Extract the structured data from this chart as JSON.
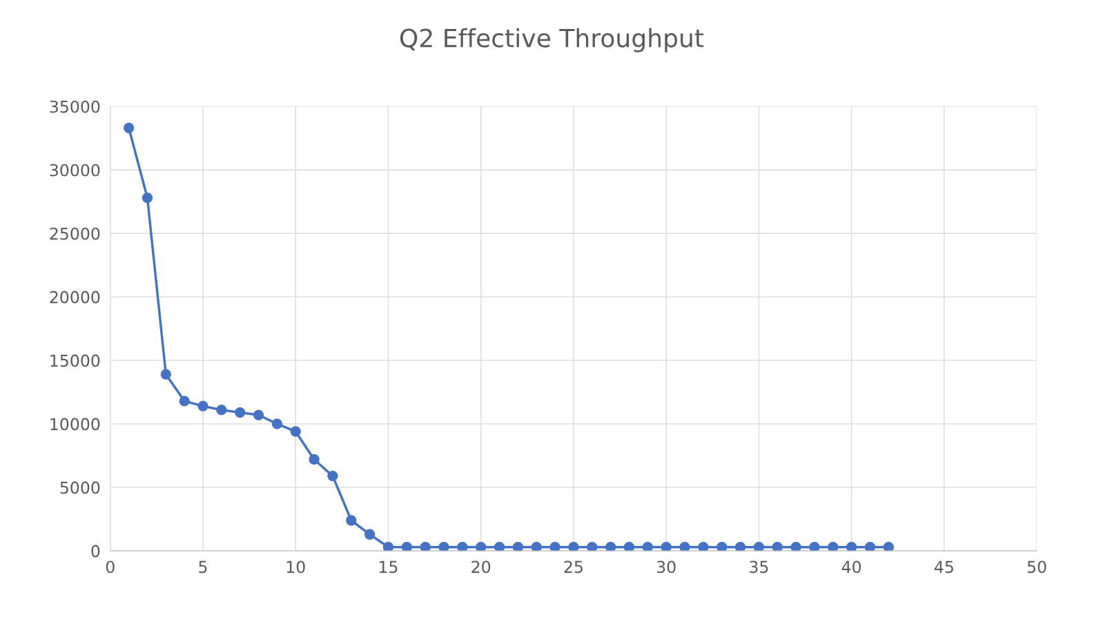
{
  "chart_data": {
    "type": "line",
    "title": "Q2 Effective Throughput",
    "x": [
      1,
      2,
      3,
      4,
      5,
      6,
      7,
      8,
      9,
      10,
      11,
      12,
      13,
      14,
      15,
      16,
      17,
      18,
      19,
      20,
      21,
      22,
      23,
      24,
      25,
      26,
      27,
      28,
      29,
      30,
      31,
      32,
      33,
      34,
      35,
      36,
      37,
      38,
      39,
      40,
      41,
      42
    ],
    "series": [
      {
        "color": "#4472c4",
        "values": [
          33300,
          27800,
          13900,
          11800,
          11400,
          11100,
          10900,
          10700,
          10000,
          9400,
          7200,
          5900,
          2400,
          1300,
          300,
          300,
          300,
          300,
          300,
          300,
          300,
          300,
          300,
          300,
          300,
          300,
          300,
          300,
          300,
          300,
          300,
          300,
          300,
          300,
          300,
          300,
          300,
          300,
          300,
          300,
          300,
          300
        ]
      }
    ],
    "xlim": [
      0,
      50
    ],
    "xticks": [
      0,
      5,
      10,
      15,
      20,
      25,
      30,
      35,
      40,
      45,
      50
    ],
    "ylim": [
      0,
      35000
    ],
    "yticks": [
      0,
      5000,
      10000,
      15000,
      20000,
      25000,
      30000,
      35000
    ],
    "grid": true,
    "marker": "circle",
    "line_style": "solid",
    "legend": false
  }
}
